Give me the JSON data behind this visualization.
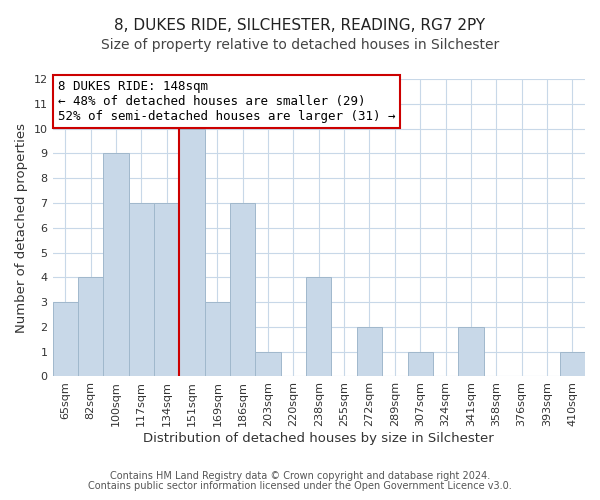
{
  "title": "8, DUKES RIDE, SILCHESTER, READING, RG7 2PY",
  "subtitle": "Size of property relative to detached houses in Silchester",
  "xlabel": "Distribution of detached houses by size in Silchester",
  "ylabel": "Number of detached properties",
  "bin_labels": [
    "65sqm",
    "82sqm",
    "100sqm",
    "117sqm",
    "134sqm",
    "151sqm",
    "169sqm",
    "186sqm",
    "203sqm",
    "220sqm",
    "238sqm",
    "255sqm",
    "272sqm",
    "289sqm",
    "307sqm",
    "324sqm",
    "341sqm",
    "358sqm",
    "376sqm",
    "393sqm",
    "410sqm"
  ],
  "bar_heights": [
    3,
    4,
    9,
    7,
    7,
    10,
    3,
    7,
    1,
    0,
    4,
    0,
    2,
    0,
    1,
    0,
    2,
    0,
    0,
    0,
    1
  ],
  "bar_color": "#c8d8e8",
  "bar_edge_color": "#a0b8cc",
  "highlight_index": 5,
  "highlight_line_color": "#cc0000",
  "annotation_title": "8 DUKES RIDE: 148sqm",
  "annotation_line1": "← 48% of detached houses are smaller (29)",
  "annotation_line2": "52% of semi-detached houses are larger (31) →",
  "annotation_box_color": "#ffffff",
  "annotation_box_edge_color": "#cc0000",
  "ylim": [
    0,
    12
  ],
  "yticks": [
    0,
    1,
    2,
    3,
    4,
    5,
    6,
    7,
    8,
    9,
    10,
    11,
    12
  ],
  "footnote1": "Contains HM Land Registry data © Crown copyright and database right 2024.",
  "footnote2": "Contains public sector information licensed under the Open Government Licence v3.0.",
  "background_color": "#ffffff",
  "grid_color": "#c8d8e8",
  "title_fontsize": 11,
  "subtitle_fontsize": 10,
  "axis_label_fontsize": 9.5,
  "tick_fontsize": 8,
  "annotation_fontsize": 9,
  "footnote_fontsize": 7
}
